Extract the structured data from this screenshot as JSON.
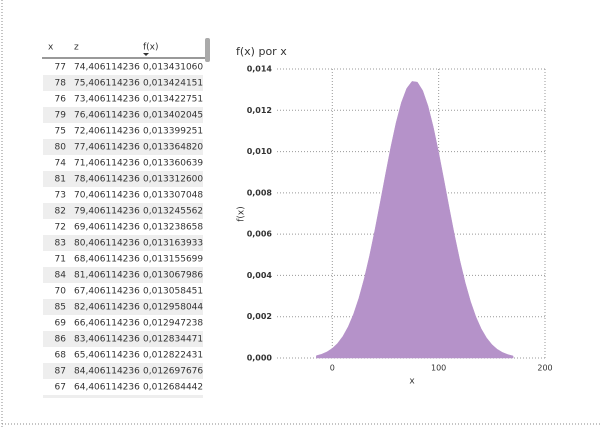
{
  "table": {
    "columns": [
      "x",
      "z",
      "f(x)"
    ],
    "rows": [
      [
        "77",
        "74,406114236",
        "0,013431060"
      ],
      [
        "78",
        "75,406114236",
        "0,013424151"
      ],
      [
        "76",
        "73,406114236",
        "0,013422751"
      ],
      [
        "79",
        "76,406114236",
        "0,013402045"
      ],
      [
        "75",
        "72,406114236",
        "0,013399251"
      ],
      [
        "80",
        "77,406114236",
        "0,013364820"
      ],
      [
        "74",
        "71,406114236",
        "0,013360639"
      ],
      [
        "81",
        "78,406114236",
        "0,013312600"
      ],
      [
        "73",
        "70,406114236",
        "0,013307048"
      ],
      [
        "82",
        "79,406114236",
        "0,013245562"
      ],
      [
        "72",
        "69,406114236",
        "0,013238658"
      ],
      [
        "83",
        "80,406114236",
        "0,013163933"
      ],
      [
        "71",
        "68,406114236",
        "0,013155699"
      ],
      [
        "84",
        "81,406114236",
        "0,013067986"
      ],
      [
        "70",
        "67,406114236",
        "0,013058451"
      ],
      [
        "85",
        "82,406114236",
        "0,012958044"
      ],
      [
        "69",
        "66,406114236",
        "0,012947238"
      ],
      [
        "86",
        "83,406114236",
        "0,012834471"
      ],
      [
        "68",
        "65,406114236",
        "0,012822431"
      ],
      [
        "87",
        "84,406114236",
        "0,012697676"
      ],
      [
        "67",
        "64,406114236",
        "0,012684442"
      ],
      [
        "88",
        "85,406114236",
        "0,012548108"
      ]
    ]
  },
  "chart_data": {
    "type": "area",
    "title": "f(x) por x",
    "x_label": "x",
    "y_label": "f(x)",
    "x": [
      -15,
      -10,
      -5,
      0,
      5,
      10,
      15,
      20,
      25,
      30,
      35,
      40,
      45,
      50,
      55,
      60,
      65,
      70,
      75,
      80,
      85,
      90,
      95,
      100,
      105,
      110,
      115,
      120,
      125,
      130,
      135,
      140,
      145,
      150,
      155,
      160,
      165,
      170
    ],
    "values": [
      0.000111,
      0.000184,
      0.000297,
      0.000466,
      0.000711,
      0.001054,
      0.001519,
      0.002128,
      0.0029,
      0.00384,
      0.004941,
      0.006181,
      0.007515,
      0.008884,
      0.010207,
      0.011401,
      0.012377,
      0.013062,
      0.0134,
      0.013362,
      0.012952,
      0.012202,
      0.011177,
      0.00995,
      0.008611,
      0.007244,
      0.005923,
      0.004709,
      0.003638,
      0.002733,
      0.001994,
      0.001415,
      0.000977,
      0.000655,
      0.000427,
      0.00027,
      0.000167,
      0.0001
    ],
    "color": "#b592c9",
    "xlim": [
      -52,
      200
    ],
    "xticks": [
      0,
      100,
      200
    ],
    "ylim": [
      0,
      0.014
    ],
    "yticks": [
      {
        "value": 0,
        "label": "0,000"
      },
      {
        "value": 0.002,
        "label": "0,002"
      },
      {
        "value": 0.004,
        "label": "0,004"
      },
      {
        "value": 0.006,
        "label": "0,006"
      },
      {
        "value": 0.008,
        "label": "0,008"
      },
      {
        "value": 0.01,
        "label": "0,010"
      },
      {
        "value": 0.012,
        "label": "0,012"
      },
      {
        "value": 0.014,
        "label": "0,014"
      }
    ],
    "grid": true
  }
}
